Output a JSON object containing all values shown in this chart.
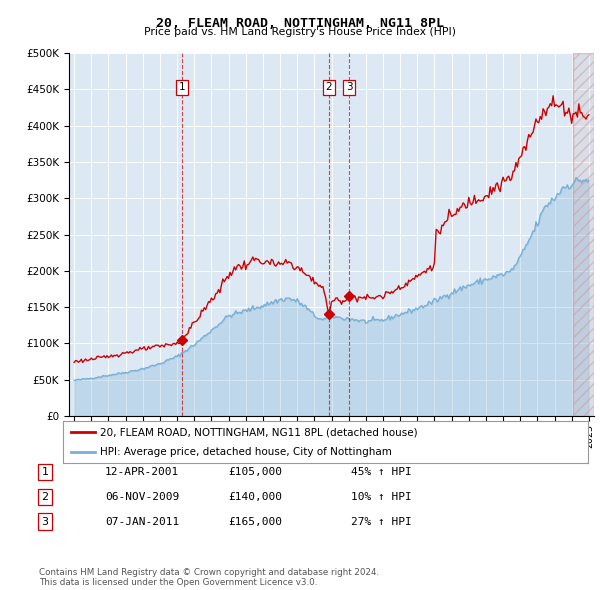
{
  "title": "20, FLEAM ROAD, NOTTINGHAM, NG11 8PL",
  "subtitle": "Price paid vs. HM Land Registry's House Price Index (HPI)",
  "legend_line1": "20, FLEAM ROAD, NOTTINGHAM, NG11 8PL (detached house)",
  "legend_line2": "HPI: Average price, detached house, City of Nottingham",
  "footer1": "Contains HM Land Registry data © Crown copyright and database right 2024.",
  "footer2": "This data is licensed under the Open Government Licence v3.0.",
  "transactions": [
    {
      "num": 1,
      "date": "12-APR-2001",
      "price": 105000,
      "change": "45% ↑ HPI",
      "year_x": 2001.28
    },
    {
      "num": 2,
      "date": "06-NOV-2009",
      "price": 140000,
      "change": "10% ↑ HPI",
      "year_x": 2009.85
    },
    {
      "num": 3,
      "date": "07-JAN-2011",
      "price": 165000,
      "change": "27% ↑ HPI",
      "year_x": 2011.02
    }
  ],
  "red_color": "#cc0000",
  "blue_color": "#7aafd4",
  "plot_bg": "#dce9f5",
  "ylim": [
    0,
    500000
  ],
  "yticks": [
    0,
    50000,
    100000,
    150000,
    200000,
    250000,
    300000,
    350000,
    400000,
    450000,
    500000
  ],
  "xlim": [
    1994.7,
    2025.3
  ]
}
